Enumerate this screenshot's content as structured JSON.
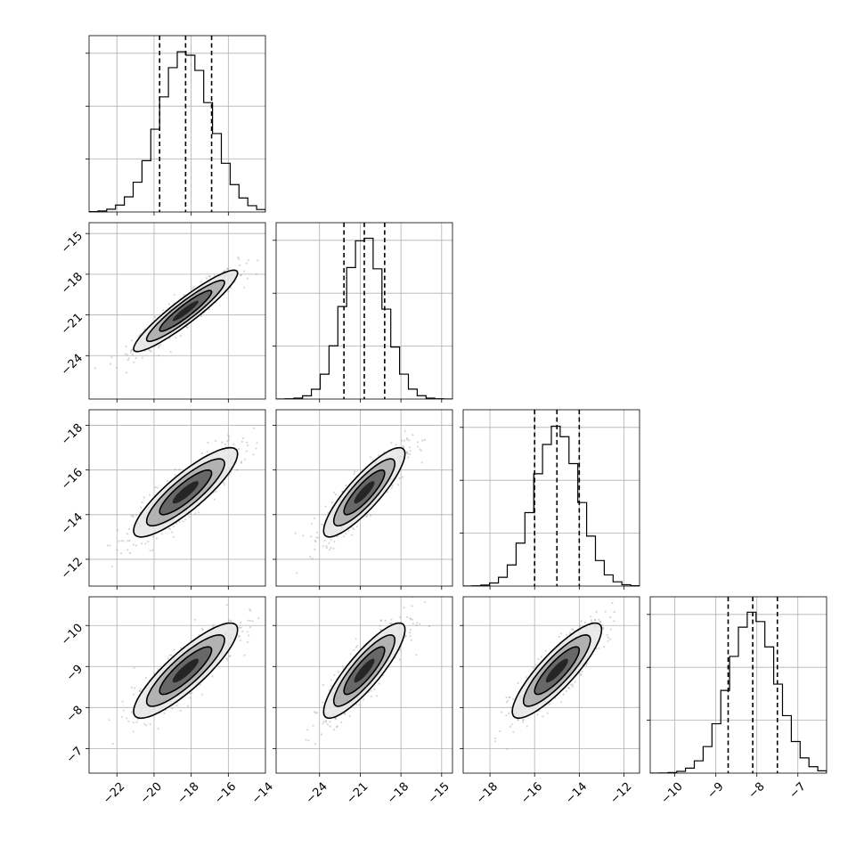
{
  "chart_data": {
    "type": "corner",
    "grid": true,
    "quantiles": [
      0.16,
      0.5,
      0.84
    ],
    "parameters": [
      {
        "mean": -18.3,
        "std": 1.4,
        "range": [
          -23.5,
          -14.0
        ],
        "ticks": [
          -22,
          -20,
          -18,
          -16,
          -14
        ],
        "quantile_values": [
          -19.7,
          -18.3,
          -16.9
        ]
      },
      {
        "mean": -20.7,
        "std": 1.5,
        "range": [
          -27.2,
          -14.2
        ],
        "ticks": [
          -24,
          -21,
          -18,
          -15
        ],
        "tick_labels_y": [
          -15,
          -18,
          -21,
          -24
        ],
        "quantile_values": [
          -22.2,
          -20.7,
          -19.2
        ]
      },
      {
        "mean": -15.0,
        "std": 1.0,
        "range": [
          -19.2,
          -11.3
        ],
        "ticks": [
          -18,
          -16,
          -14,
          -12
        ],
        "quantile_values": [
          -16.0,
          -15.0,
          -14.0
        ]
      },
      {
        "mean": -8.1,
        "std": 0.58,
        "range": [
          -10.6,
          -6.3
        ],
        "ticks": [
          -10,
          -9,
          -8,
          -7
        ],
        "quantile_values": [
          -8.7,
          -8.1,
          -7.5
        ]
      }
    ],
    "correlations": {
      "1-0": 0.93,
      "2-0": 0.86,
      "2-1": 0.86,
      "3-0": 0.86,
      "3-1": 0.86,
      "3-2": 0.86
    },
    "histogram_bins": 20,
    "contour_levels_sigma": [
      0.5,
      1.0,
      1.5,
      2.0
    ]
  },
  "tick_text": {
    "x0": [
      "−22",
      "−20",
      "−18",
      "−16",
      "−14"
    ],
    "x1": [
      "−24",
      "−21",
      "−18",
      "−15"
    ],
    "x2": [
      "−18",
      "−16",
      "−14",
      "−12"
    ],
    "x3": [
      "−10",
      "−9",
      "−8",
      "−7"
    ],
    "y1": [
      "−15",
      "−18",
      "−21",
      "−24"
    ],
    "y2": [
      "−12",
      "−14",
      "−16",
      "−18"
    ],
    "y3": [
      "−7",
      "−8",
      "−9",
      "−10"
    ]
  },
  "colors": {
    "line": "#000000",
    "grid": "#b0b0b0",
    "scatter": "#8c8c8c"
  }
}
